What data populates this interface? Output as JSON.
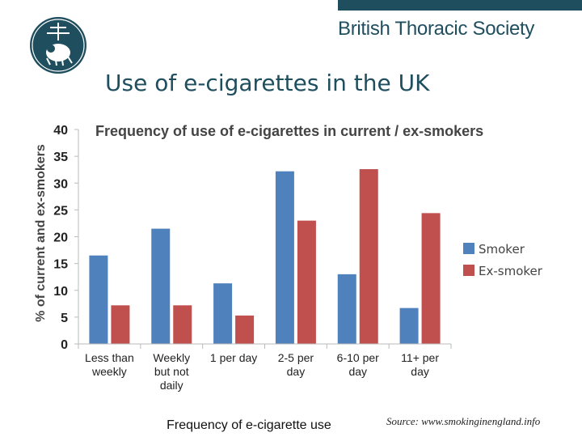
{
  "header": {
    "org_name": "British Thoracic Society",
    "logo_icon": "bts-crest-icon",
    "brand_color": "#1f4e5f"
  },
  "slide": {
    "title": "Use of e-cigarettes in the UK",
    "source": "Source: www.smokinginengland.info"
  },
  "chart_data": {
    "type": "bar",
    "title": "Frequency of use of e-cigarettes in current / ex-smokers",
    "xlabel": "Frequency of e-cigarette use",
    "ylabel": "% of current and ex-smokers",
    "categories": [
      [
        "Less than",
        "weekly"
      ],
      [
        "Weekly",
        "but not",
        "daily"
      ],
      [
        "1 per day"
      ],
      [
        "2-5 per",
        "day"
      ],
      [
        "6-10 per",
        "day"
      ],
      [
        "11+ per",
        "day"
      ]
    ],
    "series": [
      {
        "name": "Smoker",
        "color": "#4f81bd",
        "values": [
          16.5,
          21.5,
          11.3,
          32.2,
          13.0,
          6.7
        ]
      },
      {
        "name": "Ex-smoker",
        "color": "#c0504d",
        "values": [
          7.2,
          7.2,
          5.3,
          23.0,
          32.6,
          24.4
        ]
      }
    ],
    "ylim": [
      0,
      40
    ],
    "yticks": [
      0,
      5,
      10,
      15,
      20,
      25,
      30,
      35,
      40
    ],
    "grid": false,
    "legend_position": "right"
  }
}
